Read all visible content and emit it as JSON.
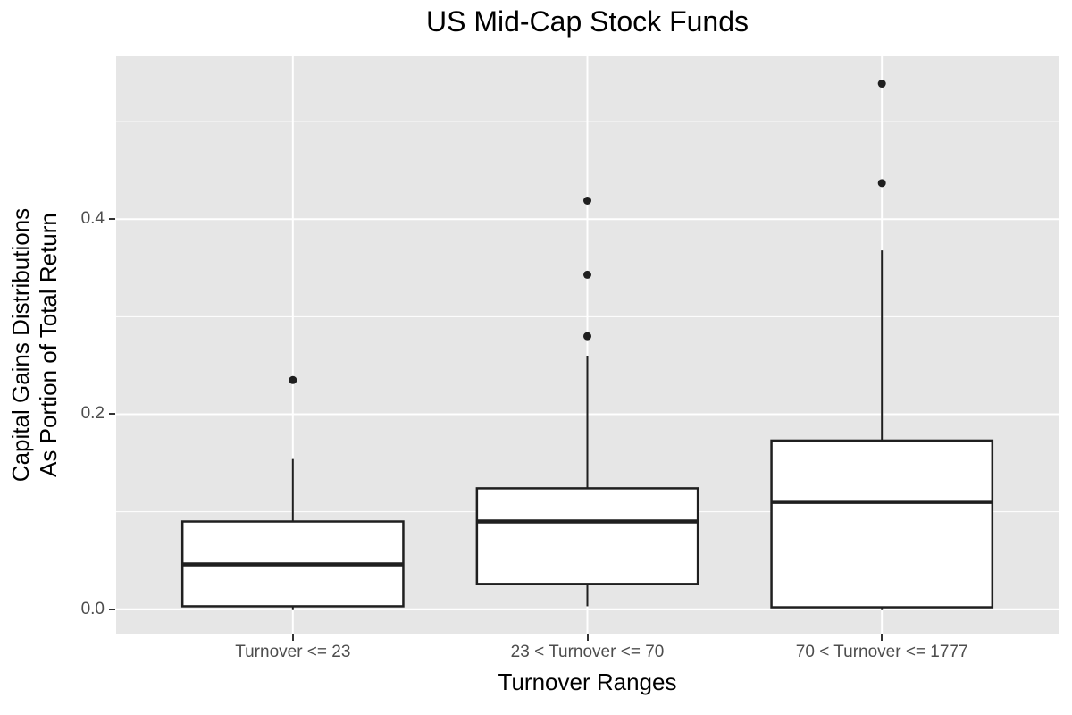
{
  "chart_data": {
    "type": "boxplot",
    "title": "US Mid-Cap Stock Funds",
    "xlabel": "Turnover Ranges",
    "ylabel_lines": [
      "Capital Gains Distributions",
      "As Portion of Total Return"
    ],
    "categories": [
      "Turnover <= 23",
      "23 < Turnover <= 70",
      "70 < Turnover <= 1777"
    ],
    "series": [
      {
        "category": "Turnover <= 23",
        "whisker_low": 0.0,
        "q1": 0.003,
        "median": 0.046,
        "q3": 0.09,
        "whisker_high": 0.154,
        "outliers": [
          0.235
        ]
      },
      {
        "category": "23 < Turnover <= 70",
        "whisker_low": 0.003,
        "q1": 0.026,
        "median": 0.09,
        "q3": 0.124,
        "whisker_high": 0.26,
        "outliers": [
          0.28,
          0.343,
          0.419
        ]
      },
      {
        "category": "70 < Turnover <= 1777",
        "whisker_low": 0.0,
        "q1": 0.002,
        "median": 0.11,
        "q3": 0.173,
        "whisker_high": 0.368,
        "outliers": [
          0.437,
          0.539
        ]
      }
    ],
    "y_ticks": [
      0.0,
      0.2,
      0.4
    ],
    "y_tick_labels": [
      "0.0",
      "0.2",
      "0.4"
    ],
    "y_minor_ticks": [
      0.1,
      0.3,
      0.5
    ],
    "ylim": [
      -0.025,
      0.567
    ],
    "grid": true,
    "legend": false,
    "colors": {
      "panel_bg": "#E6E6E6",
      "grid": "#FFFFFF",
      "box_stroke": "#1F1F1F",
      "box_fill": "#FFFFFF",
      "outlier": "#1F1F1F",
      "tick_text": "#4D4D4D",
      "axis_title_text": "#000000",
      "title_text": "#000000"
    }
  }
}
